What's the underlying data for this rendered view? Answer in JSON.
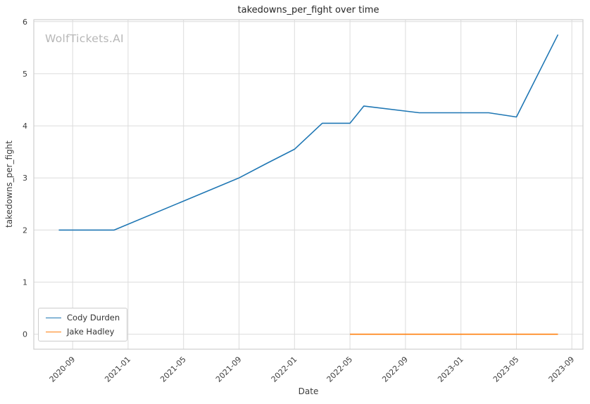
{
  "chart_data": {
    "type": "line",
    "title": "takedowns_per_fight over time",
    "xlabel": "Date",
    "ylabel": "takedowns_per_fight",
    "watermark": "WolfTickets.AI",
    "ylim": [
      0,
      6
    ],
    "yticks": [
      0,
      1,
      2,
      3,
      4,
      5,
      6
    ],
    "xticks": [
      "2020-09",
      "2021-01",
      "2021-05",
      "2021-09",
      "2022-01",
      "2022-05",
      "2022-09",
      "2023-01",
      "2023-05",
      "2023-09"
    ],
    "grid": true,
    "legend_position": "lower left",
    "series": [
      {
        "name": "Cody Durden",
        "color": "#1f77b4",
        "points": [
          [
            "2020-08",
            2.0
          ],
          [
            "2020-12",
            2.0
          ],
          [
            "2021-09",
            3.0
          ],
          [
            "2021-11",
            3.28
          ],
          [
            "2022-01",
            3.55
          ],
          [
            "2022-03",
            4.05
          ],
          [
            "2022-05",
            4.05
          ],
          [
            "2022-06",
            4.38
          ],
          [
            "2022-10",
            4.25
          ],
          [
            "2023-03",
            4.25
          ],
          [
            "2023-05",
            4.17
          ],
          [
            "2023-08",
            5.75
          ]
        ]
      },
      {
        "name": "Jake Hadley",
        "color": "#ff7f0e",
        "points": [
          [
            "2022-05",
            0.0
          ],
          [
            "2023-08",
            0.0
          ]
        ]
      }
    ]
  }
}
